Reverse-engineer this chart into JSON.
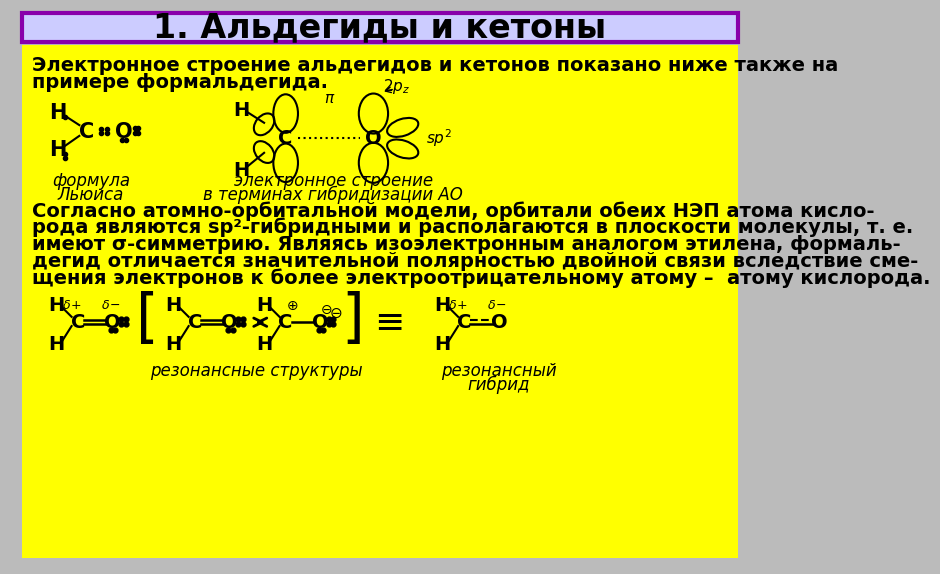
{
  "title": "1. Альдегиды и кетоны",
  "title_bg": "#ccccff",
  "title_border": "#8800aa",
  "content_bg": "#ffff00",
  "page_bg": "#bbbbbb",
  "title_fontsize": 24,
  "text1": "Электронное строение альдегидов и кетонов показано ниже также на примере формальдегида.",
  "text2_line1": "Согласно атомно-орбитальной модели, орбитали обеих НЭП атома кисло-",
  "text2_line2": "рода являются sp²-гибридными и располагаются в плоскости молекулы, т. е.",
  "text2_line3": "имеют σ-симметрию. Являясь изоэлектронным аналогом этилена, формаль-",
  "text2_line4": "дегид отличается значительной полярностью двойной связи вследствие сме-",
  "text2_line5": "щения электронов к более электроотрицательному атому –  атому кислорода.",
  "label_lewis_1": "формула",
  "label_lewis_2": "Льюиса",
  "label_orbital_1": "электронное строение",
  "label_orbital_2": "в терминах гибридизации АО",
  "label_resonance": "резонансные структуры",
  "label_hybrid_1": "резонансный",
  "label_hybrid_2": "гибрид",
  "body_fontsize": 14,
  "label_fontsize": 12
}
